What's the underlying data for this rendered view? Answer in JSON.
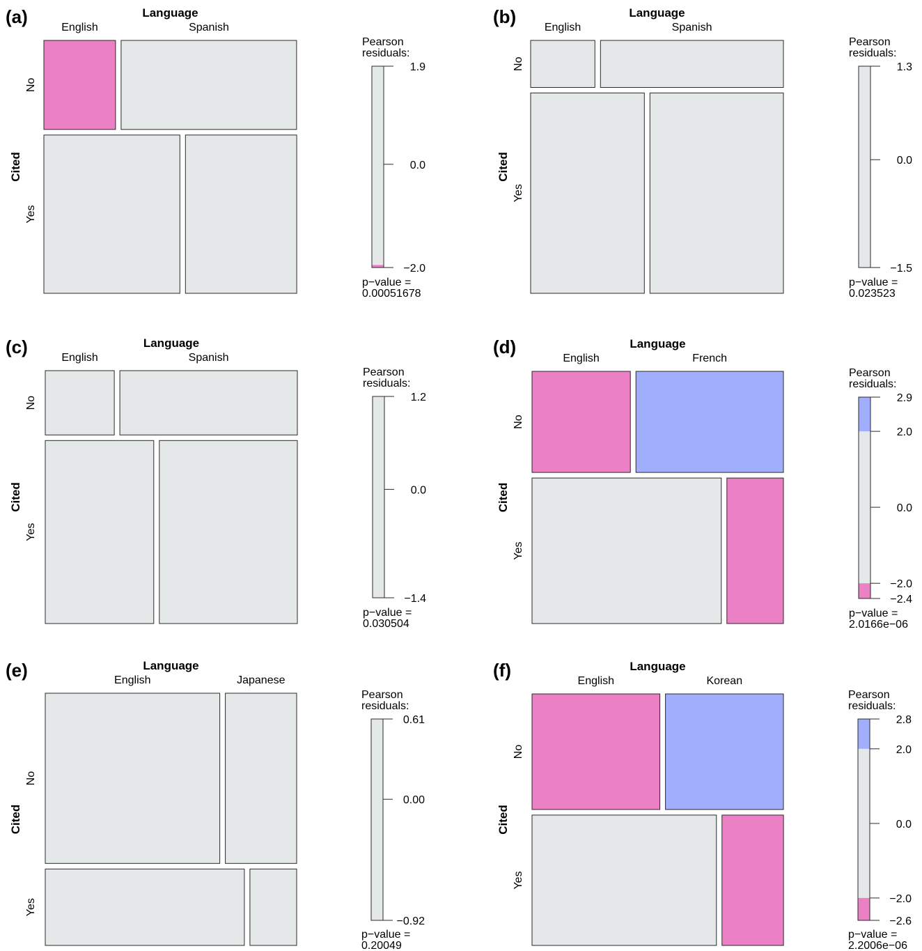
{
  "figure": {
    "colors": {
      "neutral": "#e4e8e8",
      "negative": "#ec80c5",
      "positive": "#a0aefd",
      "stroke": "#2a2a2a"
    },
    "legend_title": [
      "Pearson",
      "residuals:"
    ],
    "pvalue_label": "p−value ="
  },
  "chart_data": [
    {
      "type": "mosaic",
      "panel": "(a)",
      "x_title": "Language",
      "y_title": "Cited",
      "columns": [
        "English",
        "Spanish"
      ],
      "rows": [
        "No",
        "Yes"
      ],
      "row_shares": [
        0.36,
        0.64
      ],
      "cell_widths": [
        [
          0.29,
          0.71
        ],
        [
          0.55,
          0.45
        ]
      ],
      "residual_colors": [
        [
          "negative",
          "neutral"
        ],
        [
          "neutral",
          "neutral"
        ]
      ],
      "legend": {
        "min": -2.0,
        "max": 1.9,
        "ticks": [
          "1.9",
          "0.0",
          "−2.0"
        ],
        "tick_values": [
          1.9,
          0.0,
          -2.0
        ],
        "bands": [
          {
            "from": -2.0,
            "to": -1.95,
            "color": "negative"
          }
        ]
      },
      "p_value": "0.00051678"
    },
    {
      "type": "mosaic",
      "panel": "(b)",
      "x_title": "Language",
      "y_title": "Cited",
      "columns": [
        "English",
        "Spanish"
      ],
      "rows": [
        "No",
        "Yes"
      ],
      "row_shares": [
        0.19,
        0.81
      ],
      "cell_widths": [
        [
          0.26,
          0.74
        ],
        [
          0.46,
          0.54
        ]
      ],
      "residual_colors": [
        [
          "neutral",
          "neutral"
        ],
        [
          "neutral",
          "neutral"
        ]
      ],
      "legend": {
        "min": -1.5,
        "max": 1.3,
        "ticks": [
          "1.3",
          "0.0",
          "−1.5"
        ],
        "tick_values": [
          1.3,
          0.0,
          -1.5
        ],
        "bands": []
      },
      "p_value": "0.023523"
    },
    {
      "type": "mosaic",
      "panel": "(c)",
      "x_title": "Language",
      "y_title": "Cited",
      "columns": [
        "English",
        "Spanish"
      ],
      "rows": [
        "No",
        "Yes"
      ],
      "row_shares": [
        0.26,
        0.74
      ],
      "cell_widths": [
        [
          0.28,
          0.72
        ],
        [
          0.44,
          0.56
        ]
      ],
      "residual_colors": [
        [
          "neutral",
          "neutral"
        ],
        [
          "neutral",
          "neutral"
        ]
      ],
      "legend": {
        "min": -1.4,
        "max": 1.2,
        "ticks": [
          "1.2",
          "0.0",
          "−1.4"
        ],
        "tick_values": [
          1.2,
          0.0,
          -1.4
        ],
        "bands": []
      },
      "p_value": "0.030504"
    },
    {
      "type": "mosaic",
      "panel": "(d)",
      "x_title": "Language",
      "y_title": "Cited",
      "columns": [
        "English",
        "French"
      ],
      "rows": [
        "No",
        "Yes"
      ],
      "row_shares": [
        0.41,
        0.59
      ],
      "cell_widths": [
        [
          0.4,
          0.6
        ],
        [
          0.77,
          0.23
        ]
      ],
      "residual_colors": [
        [
          "negative",
          "positive"
        ],
        [
          "neutral",
          "negative"
        ]
      ],
      "legend": {
        "min": -2.4,
        "max": 2.9,
        "ticks": [
          "2.9",
          "2.0",
          "0.0",
          "−2.0",
          "−2.4"
        ],
        "tick_values": [
          2.9,
          2.0,
          0.0,
          -2.0,
          -2.4
        ],
        "bands": [
          {
            "from": 2.0,
            "to": 2.9,
            "color": "positive"
          },
          {
            "from": -2.4,
            "to": -2.0,
            "color": "negative"
          }
        ]
      },
      "p_value": "2.0166e−06"
    },
    {
      "type": "mosaic",
      "panel": "(e)",
      "x_title": "Language",
      "y_title": "Cited",
      "columns": [
        "English",
        "Japanese"
      ],
      "rows": [
        "No",
        "Yes"
      ],
      "row_shares": [
        0.69,
        0.31
      ],
      "cell_widths": [
        [
          0.71,
          0.29
        ],
        [
          0.81,
          0.19
        ]
      ],
      "residual_colors": [
        [
          "neutral",
          "neutral"
        ],
        [
          "neutral",
          "neutral"
        ]
      ],
      "legend": {
        "min": -0.92,
        "max": 0.61,
        "ticks": [
          "0.61",
          "0.00",
          "−0.92"
        ],
        "tick_values": [
          0.61,
          0.0,
          -0.92
        ],
        "bands": []
      },
      "p_value": "0.20049"
    },
    {
      "type": "mosaic",
      "panel": "(f)",
      "x_title": "Language",
      "y_title": "Cited",
      "columns": [
        "English",
        "Korean"
      ],
      "rows": [
        "No",
        "Yes"
      ],
      "row_shares": [
        0.47,
        0.53
      ],
      "cell_widths": [
        [
          0.52,
          0.48
        ],
        [
          0.75,
          0.25
        ]
      ],
      "residual_colors": [
        [
          "negative",
          "positive"
        ],
        [
          "neutral",
          "negative"
        ]
      ],
      "legend": {
        "min": -2.6,
        "max": 2.8,
        "ticks": [
          "2.8",
          "2.0",
          "0.0",
          "−2.0",
          "−2.6"
        ],
        "tick_values": [
          2.8,
          2.0,
          0.0,
          -2.0,
          -2.6
        ],
        "bands": [
          {
            "from": 2.0,
            "to": 2.8,
            "color": "positive"
          },
          {
            "from": -2.6,
            "to": -2.0,
            "color": "negative"
          }
        ]
      },
      "p_value": "2.2006e−06"
    }
  ]
}
